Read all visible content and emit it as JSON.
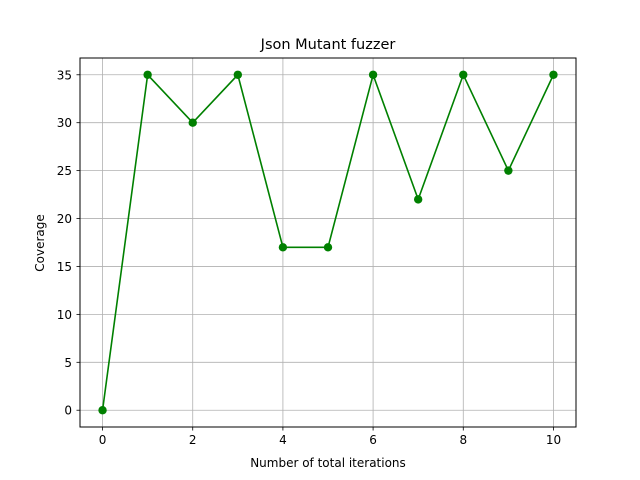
{
  "chart_data": {
    "type": "line",
    "title": "Json Mutant fuzzer",
    "xlabel": "Number of total iterations",
    "ylabel": "Coverage",
    "x": [
      0,
      1,
      2,
      3,
      4,
      5,
      6,
      7,
      8,
      9,
      10
    ],
    "series": [
      {
        "values": [
          0,
          35,
          30,
          35,
          17,
          17,
          35,
          22,
          35,
          25,
          35
        ],
        "color": "#008000",
        "marker": "circle"
      }
    ],
    "xlim": [
      -0.5,
      10.5
    ],
    "ylim": [
      -1.75,
      36.75
    ],
    "xticks": [
      0,
      2,
      4,
      6,
      8,
      10
    ],
    "yticks": [
      0,
      5,
      10,
      15,
      20,
      25,
      30,
      35
    ],
    "grid": true
  }
}
